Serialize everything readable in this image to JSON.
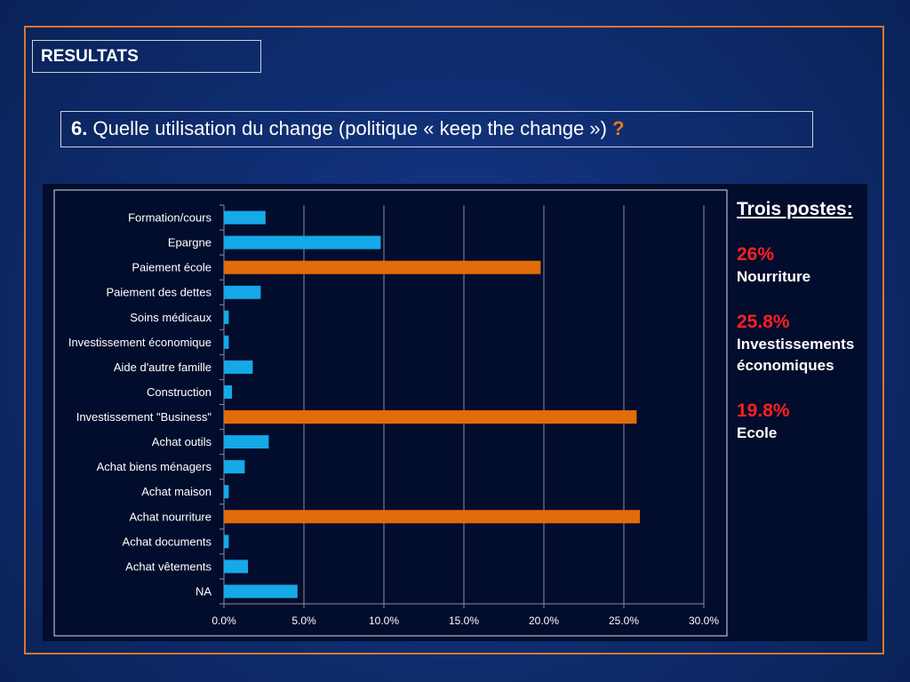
{
  "header": {
    "section_label": "RESULTATS",
    "question_number": "6.",
    "question_text": "Quelle utilisation du change (politique « keep the change »)",
    "question_mark": "?"
  },
  "sidebar": {
    "title": "Trois postes:",
    "items": [
      {
        "percent": "26%",
        "label": "Nourriture"
      },
      {
        "percent": "25.8%",
        "label": "Investissements économiques"
      },
      {
        "percent": "19.8%",
        "label": "Ecole"
      }
    ]
  },
  "colors": {
    "default_bar": "#15a9e8",
    "highlight_bar": "#e36c0a",
    "sidebar_percent": "#ff2020",
    "frame": "#d9782a"
  },
  "chart_data": {
    "type": "bar",
    "orientation": "horizontal",
    "categories": [
      "Formation/cours",
      "Epargne",
      "Paiement école",
      "Paiement des dettes",
      "Soins médicaux",
      "Investissement économique",
      "Aide d'autre famille",
      "Construction",
      "Investissement \"Business\"",
      "Achat outils",
      "Achat biens ménagers",
      "Achat maison",
      "Achat nourriture",
      "Achat documents",
      "Achat vêtements",
      "NA"
    ],
    "values": [
      2.6,
      9.8,
      19.8,
      2.3,
      0.3,
      0.3,
      1.8,
      0.5,
      25.8,
      2.8,
      1.3,
      0.3,
      26.0,
      0.3,
      1.5,
      4.6
    ],
    "highlighted": [
      false,
      false,
      true,
      false,
      false,
      false,
      false,
      false,
      true,
      false,
      false,
      false,
      true,
      false,
      false,
      false
    ],
    "xlim": [
      0,
      30
    ],
    "xticks": [
      0,
      5,
      10,
      15,
      20,
      25,
      30
    ],
    "xtick_labels": [
      "0.0%",
      "5.0%",
      "10.0%",
      "15.0%",
      "20.0%",
      "25.0%",
      "30.0%"
    ],
    "grid": true,
    "title": "",
    "xlabel": "",
    "ylabel": ""
  }
}
